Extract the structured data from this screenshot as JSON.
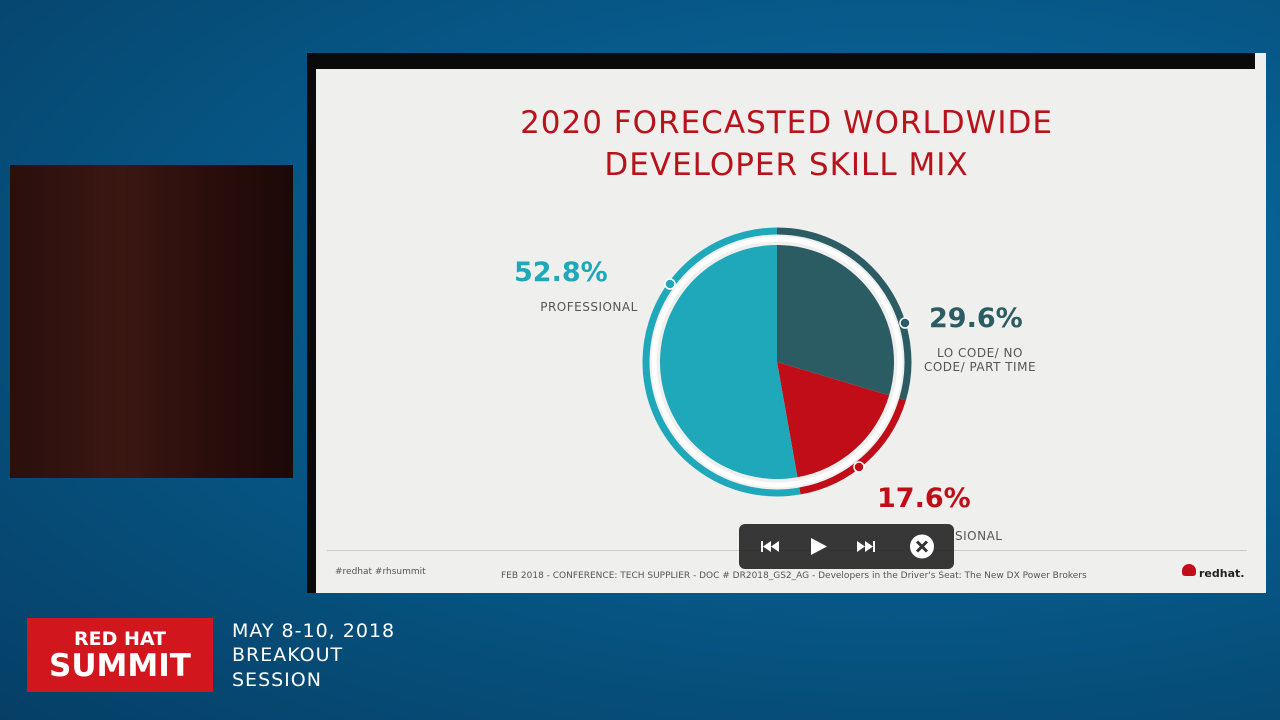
{
  "chart_data": {
    "type": "pie",
    "title": [
      "2020 FORECASTED WORLDWIDE",
      "DEVELOPER SKILL MIX"
    ],
    "categories": [
      "LO CODE/ NO CODE/ PART TIME",
      "SIONAL",
      "PROFESSIONAL"
    ],
    "values": [
      29.6,
      17.6,
      52.8
    ],
    "value_labels": [
      "29.6%",
      "17.6%",
      "52.8%"
    ],
    "colors": [
      "#2b5b63",
      "#c00d18",
      "#1fa8b9"
    ]
  },
  "slide_footer": {
    "hashtags": "#redhat  #rhsummit",
    "source": "FEB 2018 - CONFERENCE: TECH SUPPLIER - DOC # DR2018_GS2_AG - Developers in the Driver's Seat: The New DX Power Brokers",
    "brand": "redhat."
  },
  "event": {
    "logo_top": "RED HAT",
    "logo_bottom": "SUMMIT",
    "lines": [
      "MAY 8-10, 2018",
      "BREAKOUT",
      "SESSION"
    ]
  }
}
